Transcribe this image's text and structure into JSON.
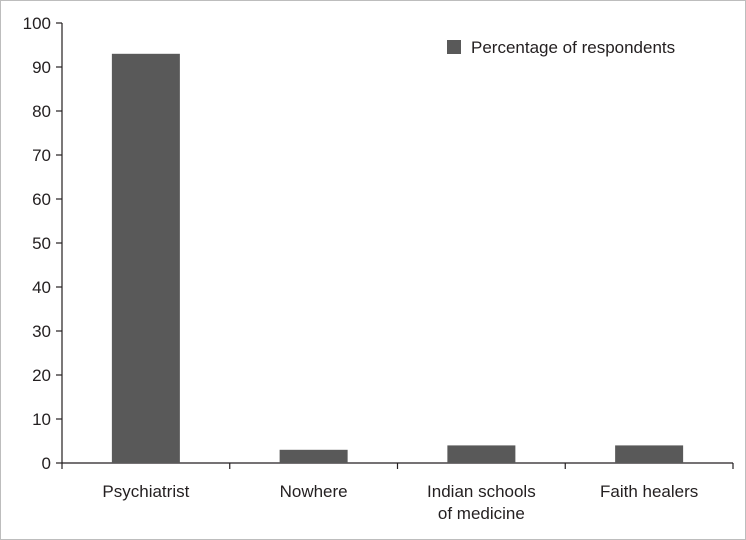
{
  "chart_data": {
    "type": "bar",
    "categories": [
      [
        "Psychiatrist"
      ],
      [
        "Nowhere"
      ],
      [
        "Indian schools",
        "of medicine"
      ],
      [
        "Faith healers"
      ]
    ],
    "series": [
      {
        "name": "Percentage of respondents",
        "values": [
          93,
          3,
          4,
          4
        ]
      }
    ],
    "yticks": [
      "0",
      "10",
      "20",
      "30",
      "40",
      "50",
      "60",
      "70",
      "80",
      "90",
      "100"
    ],
    "ylim": [
      0,
      100
    ],
    "legend_position": "top-right",
    "colors": {
      "bar": "#595959",
      "axis": "#231f20"
    }
  }
}
